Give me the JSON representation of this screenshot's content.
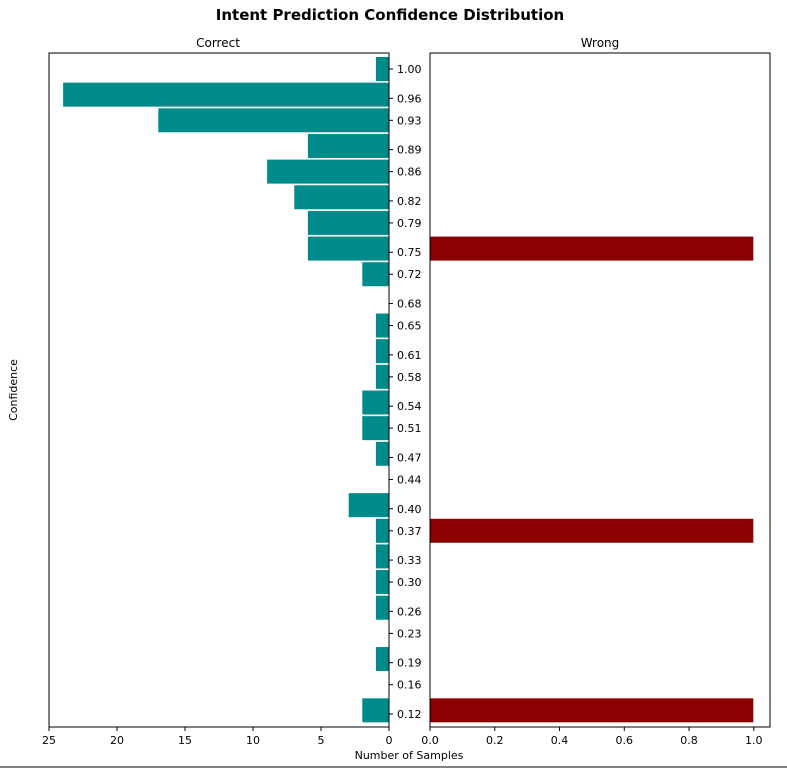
{
  "chart_data": {
    "type": "bar",
    "orientation": "horizontal",
    "title": "Intent Prediction Confidence Distribution",
    "xlabel": "Number of Samples",
    "ylabel": "Confidence",
    "colors": {
      "correct": "#008b8b",
      "wrong": "#8b0000"
    },
    "y_tick_labels": [
      "1.00",
      "0.96",
      "0.93",
      "0.89",
      "0.86",
      "0.82",
      "0.79",
      "0.75",
      "0.72",
      "0.68",
      "0.65",
      "0.61",
      "0.58",
      "0.54",
      "0.51",
      "0.47",
      "0.44",
      "0.40",
      "0.37",
      "0.33",
      "0.30",
      "0.26",
      "0.23",
      "0.19",
      "0.16",
      "0.12"
    ],
    "panels": [
      {
        "name": "Correct",
        "title": "Correct",
        "xlim": [
          25,
          0
        ],
        "x_ticks": [
          25,
          20,
          15,
          10,
          5,
          0
        ],
        "x_tick_labels": [
          "25",
          "20",
          "15",
          "10",
          "5",
          "0"
        ],
        "bars": [
          {
            "y": 1.0,
            "value": 1
          },
          {
            "y": 0.965,
            "value": 24
          },
          {
            "y": 0.93,
            "value": 17
          },
          {
            "y": 0.895,
            "value": 6
          },
          {
            "y": 0.86,
            "value": 9
          },
          {
            "y": 0.825,
            "value": 7
          },
          {
            "y": 0.79,
            "value": 6
          },
          {
            "y": 0.755,
            "value": 6
          },
          {
            "y": 0.72,
            "value": 2
          },
          {
            "y": 0.65,
            "value": 1
          },
          {
            "y": 0.615,
            "value": 1
          },
          {
            "y": 0.58,
            "value": 1
          },
          {
            "y": 0.545,
            "value": 2
          },
          {
            "y": 0.51,
            "value": 2
          },
          {
            "y": 0.475,
            "value": 1
          },
          {
            "y": 0.405,
            "value": 3
          },
          {
            "y": 0.37,
            "value": 1
          },
          {
            "y": 0.335,
            "value": 1
          },
          {
            "y": 0.3,
            "value": 1
          },
          {
            "y": 0.265,
            "value": 1
          },
          {
            "y": 0.195,
            "value": 1
          },
          {
            "y": 0.125,
            "value": 2
          }
        ]
      },
      {
        "name": "Wrong",
        "title": "Wrong",
        "xlim": [
          0,
          1.05
        ],
        "x_ticks": [
          0,
          0.2,
          0.4,
          0.6,
          0.8,
          1.0
        ],
        "x_tick_labels": [
          "0.0",
          "0.2",
          "0.4",
          "0.6",
          "0.8",
          "1.0"
        ],
        "bars": [
          {
            "y": 0.755,
            "value": 1
          },
          {
            "y": 0.37,
            "value": 1
          },
          {
            "y": 0.125,
            "value": 1
          }
        ]
      }
    ]
  }
}
